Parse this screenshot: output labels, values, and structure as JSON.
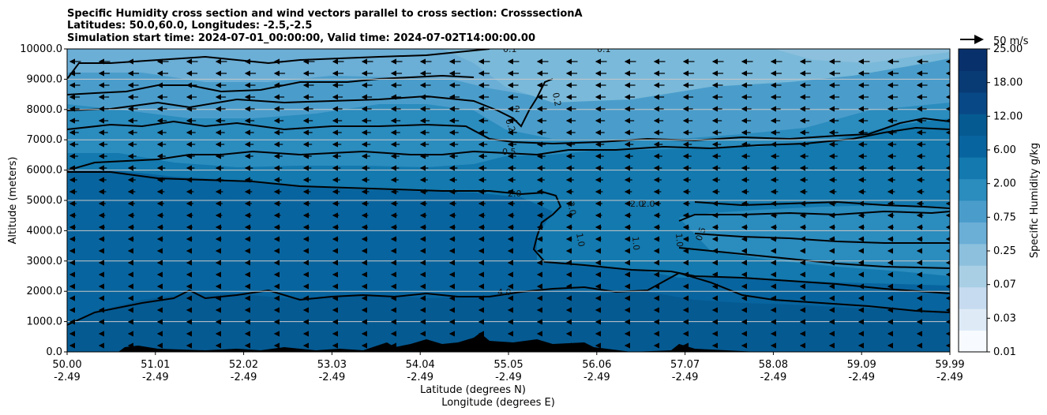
{
  "chart_data": {
    "type": "contour",
    "title_lines": [
      "Specific Humidity cross section and wind vectors parallel to cross section: CrosssectionA",
      "Latitudes: 50.0,60.0, Longitudes: -2.5,-2.5",
      "Simulation start time: 2024-07-01_00:00:00, Valid time: 2024-07-02T14:00:00.00"
    ],
    "ylabel": "Altitude (meters)",
    "xlabel_lines": [
      "Latitude (degrees N)",
      "Longitude (degrees E)"
    ],
    "ylim": [
      0,
      10000
    ],
    "y_ticks": [
      "0.0",
      "1000.0",
      "2000.0",
      "3000.0",
      "4000.0",
      "5000.0",
      "6000.0",
      "7000.0",
      "8000.0",
      "9000.0",
      "10000.0"
    ],
    "x_ticks_lat": [
      "50.00",
      "51.01",
      "52.02",
      "53.03",
      "54.04",
      "55.05",
      "56.06",
      "57.07",
      "58.08",
      "59.09",
      "59.99"
    ],
    "x_ticks_lon": [
      "-2.49",
      "-2.49",
      "-2.49",
      "-2.49",
      "-2.49",
      "-2.49",
      "-2.49",
      "-2.49",
      "-2.49",
      "-2.49",
      "-2.49"
    ],
    "horizontal_grid": true,
    "colorbar": {
      "label": "Specific Humidity g/kg",
      "ticks": [
        "0.01",
        "0.03",
        "0.07",
        "0.25",
        "0.75",
        "2.00",
        "6.00",
        "12.00",
        "18.00",
        "25.00"
      ],
      "colors": [
        "#f7fbff",
        "#deebf7",
        "#c6dbef",
        "#a9cfe5",
        "#8cc0dd",
        "#6baed6",
        "#4a9dcb",
        "#2b8cbe",
        "#1379ae",
        "#08649e",
        "#055a92",
        "#084886",
        "#083a74",
        "#08306b"
      ]
    },
    "contour_labels": [
      "0.1",
      "0.1",
      "0.2",
      "0.2",
      "2",
      "0.5",
      "2.0",
      "2.0",
      "2.0",
      "2.0",
      "1.0",
      "1.0",
      "1.0",
      "0.5",
      "4.0"
    ],
    "wind_reference": "50 m/s",
    "wind_direction": "southward (toward lower latitude)"
  }
}
